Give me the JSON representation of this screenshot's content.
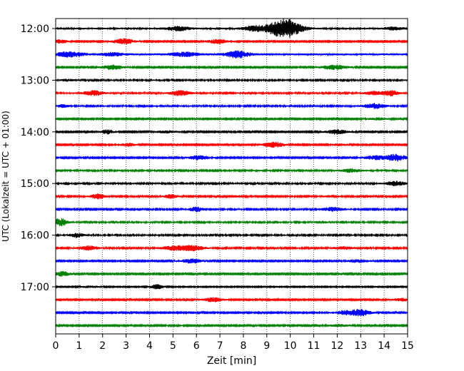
{
  "chart_data": {
    "type": "line",
    "title": "",
    "xlabel": "Zeit  [min]",
    "ylabel": "UTC (Lokalzeit = UTC + 01:00)",
    "xlim": [
      0,
      15
    ],
    "x_ticks": [
      "0",
      "1",
      "2",
      "3",
      "4",
      "5",
      "6",
      "7",
      "8",
      "9",
      "10",
      "11",
      "12",
      "13",
      "14",
      "15"
    ],
    "y_tick_labels": [
      "12:00",
      "13:00",
      "14:00",
      "15:00",
      "16:00",
      "17:00"
    ],
    "grid": "vertical dotted",
    "trace_interval_min": 15,
    "start_time": "12:00",
    "trace_colors": [
      "#000000",
      "#ff0000",
      "#0000ff",
      "#008000"
    ],
    "traces": [
      {
        "label": "12:00",
        "color": "#000000",
        "noise": 0.35,
        "events": [
          [
            5.2,
            0.9,
            0.35
          ],
          [
            8.4,
            1.0,
            0.3
          ],
          [
            9.6,
            2.8,
            0.5
          ],
          [
            10.0,
            1.6,
            0.4
          ],
          [
            14.4,
            0.6,
            0.3
          ]
        ]
      },
      {
        "label": "12:15",
        "color": "#ff0000",
        "noise": 0.25,
        "events": [
          [
            0.2,
            0.8,
            0.2
          ],
          [
            2.9,
            1.2,
            0.3
          ],
          [
            6.9,
            0.9,
            0.3
          ]
        ]
      },
      {
        "label": "12:30",
        "color": "#0000ff",
        "noise": 0.45,
        "events": [
          [
            0.6,
            1.0,
            0.4
          ],
          [
            2.4,
            0.6,
            0.3
          ],
          [
            5.5,
            0.8,
            0.4
          ],
          [
            7.6,
            0.8,
            0.3
          ],
          [
            7.9,
            0.8,
            0.3
          ]
        ]
      },
      {
        "label": "12:45",
        "color": "#008000",
        "noise": 0.25,
        "events": [
          [
            2.4,
            1.1,
            0.3
          ],
          [
            11.9,
            0.9,
            0.4
          ]
        ]
      },
      {
        "label": "13:00",
        "color": "#000000",
        "noise": 0.3,
        "events": [
          [
            0.5,
            0.4,
            0.2
          ]
        ]
      },
      {
        "label": "13:15",
        "color": "#ff0000",
        "noise": 0.3,
        "events": [
          [
            1.6,
            1.1,
            0.3
          ],
          [
            5.3,
            1.1,
            0.3
          ],
          [
            13.6,
            0.7,
            0.3
          ],
          [
            14.3,
            1.1,
            0.2
          ]
        ]
      },
      {
        "label": "13:30",
        "color": "#0000ff",
        "noise": 0.3,
        "events": [
          [
            0.3,
            0.5,
            0.2
          ],
          [
            13.6,
            1.1,
            0.3
          ]
        ]
      },
      {
        "label": "13:45",
        "color": "#008000",
        "noise": 0.25,
        "events": [
          [
            13.7,
            0.5,
            0.3
          ]
        ]
      },
      {
        "label": "14:00",
        "color": "#000000",
        "noise": 0.25,
        "events": [
          [
            2.2,
            0.9,
            0.2
          ],
          [
            4.7,
            0.5,
            0.3
          ],
          [
            12.0,
            1.0,
            0.3
          ]
        ]
      },
      {
        "label": "14:15",
        "color": "#ff0000",
        "noise": 0.25,
        "events": [
          [
            3.1,
            0.7,
            0.2
          ],
          [
            9.3,
            1.2,
            0.3
          ],
          [
            12.1,
            0.4,
            0.2
          ]
        ]
      },
      {
        "label": "14:30",
        "color": "#0000ff",
        "noise": 0.25,
        "events": [
          [
            6.1,
            0.9,
            0.3
          ],
          [
            13.6,
            0.9,
            0.3
          ],
          [
            14.5,
            1.5,
            0.3
          ]
        ]
      },
      {
        "label": "14:45",
        "color": "#008000",
        "noise": 0.3,
        "events": [
          [
            12.6,
            0.7,
            0.3
          ]
        ]
      },
      {
        "label": "15:00",
        "color": "#000000",
        "noise": 0.3,
        "events": [
          [
            14.5,
            0.9,
            0.3
          ]
        ]
      },
      {
        "label": "15:15",
        "color": "#ff0000",
        "noise": 0.28,
        "events": [
          [
            1.8,
            1.0,
            0.2
          ],
          [
            4.9,
            0.8,
            0.2
          ],
          [
            11.8,
            0.5,
            0.2
          ]
        ]
      },
      {
        "label": "15:30",
        "color": "#0000ff",
        "noise": 0.28,
        "events": [
          [
            6.0,
            1.0,
            0.2
          ],
          [
            11.8,
            0.8,
            0.3
          ]
        ]
      },
      {
        "label": "15:45",
        "color": "#008000",
        "noise": 0.3,
        "events": [
          [
            0.2,
            1.6,
            0.2
          ],
          [
            11.3,
            0.4,
            0.2
          ]
        ]
      },
      {
        "label": "16:00",
        "color": "#000000",
        "noise": 0.3,
        "events": [
          [
            0.9,
            0.9,
            0.2
          ]
        ]
      },
      {
        "label": "16:15",
        "color": "#ff0000",
        "noise": 0.28,
        "events": [
          [
            1.4,
            0.9,
            0.3
          ],
          [
            5.1,
            1.0,
            0.4
          ],
          [
            5.9,
            1.0,
            0.3
          ],
          [
            12.3,
            0.6,
            0.3
          ]
        ]
      },
      {
        "label": "16:30",
        "color": "#0000ff",
        "noise": 0.25,
        "events": [
          [
            5.8,
            0.9,
            0.3
          ],
          [
            12.9,
            0.7,
            0.3
          ]
        ]
      },
      {
        "label": "16:45",
        "color": "#008000",
        "noise": 0.25,
        "events": [
          [
            0.3,
            1.1,
            0.2
          ]
        ]
      },
      {
        "label": "17:00",
        "color": "#000000",
        "noise": 0.2,
        "events": [
          [
            1.5,
            0.4,
            0.3
          ],
          [
            4.3,
            1.0,
            0.2
          ]
        ]
      },
      {
        "label": "17:15",
        "color": "#ff0000",
        "noise": 0.25,
        "events": [
          [
            6.7,
            0.9,
            0.3
          ],
          [
            14.8,
            0.6,
            0.3
          ]
        ]
      },
      {
        "label": "17:30",
        "color": "#0000ff",
        "noise": 0.25,
        "events": [
          [
            12.3,
            0.8,
            0.3
          ],
          [
            13.0,
            1.4,
            0.3
          ]
        ]
      },
      {
        "label": "17:45",
        "color": "#008000",
        "noise": 0.25,
        "events": [
          [
            12.1,
            0.5,
            0.3
          ]
        ]
      }
    ]
  }
}
